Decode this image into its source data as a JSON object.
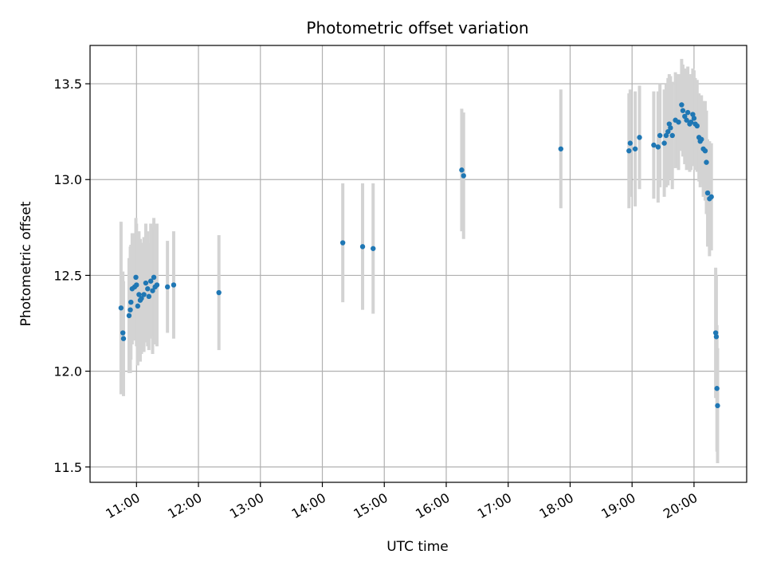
{
  "chart_data": {
    "type": "scatter",
    "title": "Photometric offset variation",
    "xlabel": "UTC time",
    "ylabel": "Photometric offset",
    "x_unit": "hour",
    "xlim": [
      10.25,
      20.85
    ],
    "ylim": [
      11.42,
      13.7
    ],
    "xticks": [
      11,
      12,
      13,
      14,
      15,
      16,
      17,
      18,
      19,
      20
    ],
    "xtick_labels": [
      "11:00",
      "12:00",
      "13:00",
      "14:00",
      "15:00",
      "16:00",
      "17:00",
      "18:00",
      "19:00",
      "20:00"
    ],
    "yticks": [
      11.5,
      12.0,
      12.5,
      13.0,
      13.5
    ],
    "ytick_labels": [
      "11.5",
      "12.0",
      "12.5",
      "13.0",
      "13.5"
    ],
    "grid": true,
    "colors": {
      "point": "#1f77b4",
      "errorbar": "#d3d3d3",
      "grid": "#b0b0b0"
    },
    "series": [
      {
        "x": [
          10.75,
          10.78,
          10.79,
          10.88,
          10.9,
          10.91,
          10.93,
          10.97,
          10.99,
          11.0,
          11.02,
          11.04,
          11.06,
          11.08,
          11.12,
          11.15,
          11.18,
          11.2,
          11.23,
          11.26,
          11.28,
          11.3,
          11.33,
          11.5,
          11.6,
          12.33,
          14.33,
          14.65,
          14.82,
          16.25,
          16.28,
          17.85,
          18.95,
          18.97,
          19.05,
          19.12,
          19.35,
          19.42,
          19.45,
          19.52,
          19.55,
          19.58,
          19.6,
          19.62,
          19.65,
          19.7,
          19.75,
          19.8,
          19.82,
          19.85,
          19.88,
          19.9,
          19.93,
          19.95,
          19.98,
          20.0,
          20.02,
          20.05,
          20.08,
          20.1,
          20.12,
          20.15,
          20.18,
          20.2,
          20.22,
          20.25,
          20.28,
          20.35,
          20.36,
          20.37,
          20.38
        ],
        "y": [
          12.33,
          12.2,
          12.17,
          12.29,
          12.32,
          12.36,
          12.43,
          12.44,
          12.49,
          12.45,
          12.34,
          12.4,
          12.37,
          12.38,
          12.4,
          12.46,
          12.43,
          12.39,
          12.47,
          12.42,
          12.49,
          12.44,
          12.45,
          12.44,
          12.45,
          12.41,
          12.67,
          12.65,
          12.64,
          13.05,
          13.02,
          13.16,
          13.15,
          13.19,
          13.16,
          13.22,
          13.18,
          13.17,
          13.23,
          13.19,
          13.23,
          13.25,
          13.29,
          13.27,
          13.23,
          13.31,
          13.3,
          13.39,
          13.36,
          13.33,
          13.31,
          13.35,
          13.29,
          13.3,
          13.34,
          13.32,
          13.29,
          13.28,
          13.22,
          13.2,
          13.21,
          13.16,
          13.15,
          13.09,
          12.93,
          12.9,
          12.91,
          12.2,
          12.18,
          11.91,
          11.82
        ],
        "yerr": [
          0.45,
          0.32,
          0.3,
          0.3,
          0.33,
          0.3,
          0.29,
          0.28,
          0.31,
          0.32,
          0.31,
          0.33,
          0.32,
          0.29,
          0.3,
          0.31,
          0.3,
          0.28,
          0.3,
          0.33,
          0.31,
          0.3,
          0.32,
          0.24,
          0.28,
          0.3,
          0.31,
          0.33,
          0.34,
          0.32,
          0.33,
          0.31,
          0.3,
          0.28,
          0.3,
          0.27,
          0.28,
          0.29,
          0.27,
          0.28,
          0.27,
          0.28,
          0.26,
          0.27,
          0.28,
          0.25,
          0.25,
          0.24,
          0.24,
          0.25,
          0.26,
          0.24,
          0.25,
          0.25,
          0.24,
          0.25,
          0.24,
          0.24,
          0.23,
          0.24,
          0.23,
          0.25,
          0.26,
          0.27,
          0.28,
          0.3,
          0.28,
          0.34,
          0.32,
          0.33,
          0.3
        ]
      }
    ]
  }
}
